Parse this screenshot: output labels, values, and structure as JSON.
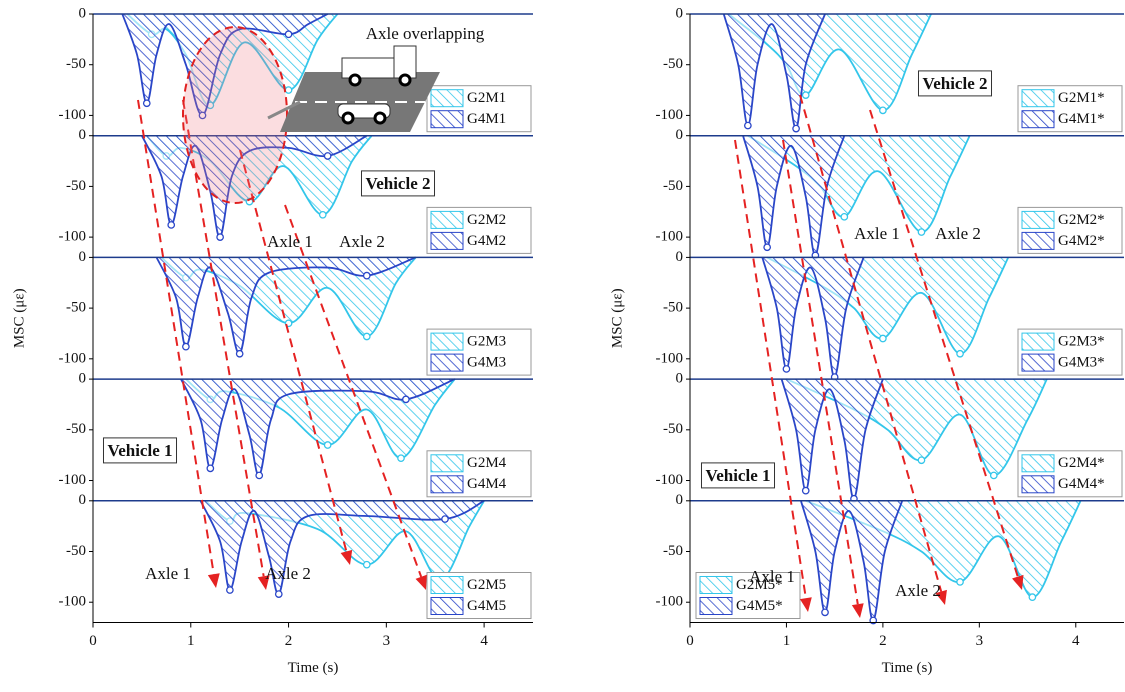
{
  "chart_data": [
    {
      "type": "area",
      "xlabel": "Time (s)",
      "ylabel": "MSC (με)",
      "xlim": [
        0,
        4.5
      ],
      "xticks": [
        0,
        1,
        2,
        3,
        4
      ],
      "ylim": [
        -120,
        0
      ],
      "yticks": [
        0,
        -50,
        -100
      ],
      "annotations": [
        "Axle overlapping",
        "Vehicle 2",
        "Axle 1",
        "Axle 2",
        "Vehicle 1",
        "Axle 1",
        "Axle 2"
      ],
      "subplots": [
        {
          "legend": "lower right",
          "series": [
            {
              "name": "G2M1",
              "color": "#33c6ea",
              "x": [
                0.35,
                0.6,
                0.75,
                0.95,
                1.2,
                1.55,
                2.0,
                2.3,
                2.5
              ],
              "values": [
                0,
                -20,
                -15,
                -40,
                -90,
                -28,
                -75,
                -25,
                0
              ]
            },
            {
              "name": "G4M1",
              "color": "#2a46c8",
              "x": [
                0.3,
                0.45,
                0.55,
                0.65,
                0.78,
                0.95,
                1.12,
                1.3,
                1.5,
                2.0,
                2.2,
                2.4
              ],
              "values": [
                0,
                -40,
                -88,
                -40,
                -10,
                -50,
                -100,
                -40,
                -15,
                -20,
                -10,
                0
              ]
            }
          ]
        },
        {
          "legend": "lower right",
          "series": [
            {
              "name": "G2M2",
              "color": "#33c6ea",
              "x": [
                0.55,
                0.75,
                0.9,
                1.2,
                1.6,
                1.95,
                2.35,
                2.65,
                2.85
              ],
              "values": [
                0,
                -20,
                -12,
                -25,
                -65,
                -30,
                -78,
                -25,
                0
              ]
            },
            {
              "name": "G4M2",
              "color": "#2a46c8",
              "x": [
                0.5,
                0.7,
                0.8,
                0.92,
                1.05,
                1.2,
                1.3,
                1.42,
                1.6,
                2.0,
                2.4,
                2.8
              ],
              "values": [
                0,
                -40,
                -88,
                -40,
                -10,
                -55,
                -100,
                -40,
                -15,
                -12,
                -20,
                0
              ]
            }
          ]
        },
        {
          "legend": "lower right",
          "series": [
            {
              "name": "G2M3",
              "color": "#33c6ea",
              "x": [
                0.7,
                0.95,
                1.1,
                1.5,
                2.0,
                2.4,
                2.8,
                3.1,
                3.3
              ],
              "values": [
                0,
                -20,
                -12,
                -28,
                -65,
                -30,
                -78,
                -25,
                0
              ]
            },
            {
              "name": "G4M3",
              "color": "#2a46c8",
              "x": [
                0.65,
                0.85,
                0.95,
                1.07,
                1.2,
                1.38,
                1.5,
                1.62,
                1.8,
                2.4,
                2.8,
                3.3
              ],
              "values": [
                0,
                -40,
                -88,
                -40,
                -10,
                -55,
                -95,
                -40,
                -15,
                -10,
                -18,
                0
              ]
            }
          ]
        },
        {
          "legend": "lower right",
          "series": [
            {
              "name": "G2M4",
              "color": "#33c6ea",
              "x": [
                0.95,
                1.2,
                1.35,
                1.9,
                2.4,
                2.8,
                3.15,
                3.5,
                3.7
              ],
              "values": [
                0,
                -20,
                -12,
                -28,
                -65,
                -30,
                -78,
                -25,
                0
              ]
            },
            {
              "name": "G4M4",
              "color": "#2a46c8",
              "x": [
                0.9,
                1.1,
                1.2,
                1.32,
                1.45,
                1.6,
                1.7,
                1.82,
                2.0,
                2.8,
                3.2,
                3.7
              ],
              "values": [
                0,
                -40,
                -88,
                -40,
                -10,
                -55,
                -95,
                -40,
                -15,
                -12,
                -20,
                0
              ]
            }
          ]
        },
        {
          "legend": "lower right",
          "series": [
            {
              "name": "G2M5",
              "color": "#33c6ea",
              "x": [
                1.15,
                1.4,
                1.55,
                2.3,
                2.8,
                3.2,
                3.55,
                3.85,
                4.0
              ],
              "values": [
                0,
                -20,
                -12,
                -28,
                -63,
                -30,
                -78,
                -25,
                0
              ]
            },
            {
              "name": "G4M5",
              "color": "#2a46c8",
              "x": [
                1.1,
                1.3,
                1.4,
                1.52,
                1.65,
                1.8,
                1.9,
                2.02,
                2.2,
                2.8,
                3.6,
                4.0
              ],
              "values": [
                0,
                -40,
                -88,
                -40,
                -10,
                -55,
                -92,
                -40,
                -15,
                -15,
                -18,
                0
              ]
            }
          ]
        }
      ]
    },
    {
      "type": "area",
      "xlabel": "Time (s)",
      "ylabel": "MSC (με)",
      "xlim": [
        0,
        4.5
      ],
      "xticks": [
        0,
        1,
        2,
        3,
        4
      ],
      "ylim": [
        -120,
        0
      ],
      "yticks": [
        0,
        -50,
        -100
      ],
      "annotations": [
        "Vehicle 2",
        "Axle 1",
        "Axle 2",
        "Vehicle 1",
        "Axle 1",
        "Axle 2"
      ],
      "subplots": [
        {
          "legend": "lower right",
          "series": [
            {
              "name": "G2M1*",
              "color": "#33c6ea",
              "x": [
                0.4,
                0.8,
                1.0,
                1.2,
                1.55,
                2.0,
                2.3,
                2.5
              ],
              "values": [
                0,
                -30,
                -50,
                -80,
                -35,
                -95,
                -40,
                0
              ]
            },
            {
              "name": "G4M1*",
              "color": "#2a46c8",
              "x": [
                0.35,
                0.5,
                0.6,
                0.7,
                0.85,
                1.0,
                1.1,
                1.2,
                1.4
              ],
              "values": [
                0,
                -50,
                -110,
                -50,
                -10,
                -60,
                -113,
                -50,
                0
              ]
            }
          ]
        },
        {
          "legend": "lower right",
          "series": [
            {
              "name": "G2M2*",
              "color": "#33c6ea",
              "x": [
                0.6,
                1.1,
                1.35,
                1.6,
                1.95,
                2.4,
                2.7,
                2.9
              ],
              "values": [
                0,
                -30,
                -50,
                -80,
                -35,
                -95,
                -40,
                0
              ]
            },
            {
              "name": "G4M2*",
              "color": "#2a46c8",
              "x": [
                0.55,
                0.7,
                0.8,
                0.9,
                1.05,
                1.2,
                1.3,
                1.42,
                1.6
              ],
              "values": [
                0,
                -50,
                -110,
                -50,
                -10,
                -60,
                -118,
                -50,
                0
              ]
            }
          ]
        },
        {
          "legend": "lower right",
          "series": [
            {
              "name": "G2M3*",
              "color": "#33c6ea",
              "x": [
                0.8,
                1.4,
                1.7,
                2.0,
                2.4,
                2.8,
                3.1,
                3.3
              ],
              "values": [
                0,
                -30,
                -50,
                -80,
                -35,
                -95,
                -40,
                0
              ]
            },
            {
              "name": "G4M3*",
              "color": "#2a46c8",
              "x": [
                0.75,
                0.9,
                1.0,
                1.1,
                1.25,
                1.4,
                1.5,
                1.62,
                1.8
              ],
              "values": [
                0,
                -50,
                -110,
                -50,
                -10,
                -60,
                -118,
                -50,
                0
              ]
            }
          ]
        },
        {
          "legend": "lower right",
          "series": [
            {
              "name": "G2M4*",
              "color": "#33c6ea",
              "x": [
                1.0,
                1.7,
                2.05,
                2.4,
                2.8,
                3.15,
                3.5,
                3.7
              ],
              "values": [
                0,
                -30,
                -50,
                -80,
                -35,
                -95,
                -40,
                0
              ]
            },
            {
              "name": "G4M4*",
              "color": "#2a46c8",
              "x": [
                0.95,
                1.1,
                1.2,
                1.3,
                1.45,
                1.6,
                1.7,
                1.82,
                2.0
              ],
              "values": [
                0,
                -50,
                -110,
                -50,
                -10,
                -60,
                -118,
                -50,
                0
              ]
            }
          ]
        },
        {
          "legend": "lower left",
          "series": [
            {
              "name": "G2M5*",
              "color": "#33c6ea",
              "x": [
                1.2,
                2.0,
                2.4,
                2.8,
                3.2,
                3.55,
                3.85,
                4.05
              ],
              "values": [
                0,
                -30,
                -50,
                -80,
                -35,
                -95,
                -40,
                0
              ]
            },
            {
              "name": "G4M5*",
              "color": "#2a46c8",
              "x": [
                1.15,
                1.3,
                1.4,
                1.5,
                1.65,
                1.8,
                1.9,
                2.02,
                2.2
              ],
              "values": [
                0,
                -50,
                -110,
                -50,
                -10,
                -60,
                -118,
                -50,
                0
              ]
            }
          ]
        }
      ]
    }
  ]
}
